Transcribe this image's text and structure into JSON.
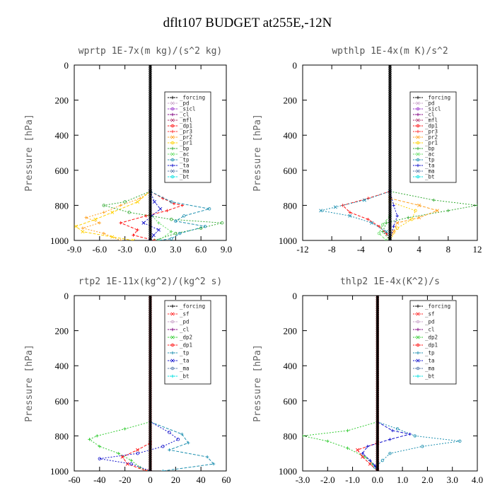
{
  "page_title": "dflt107  BUDGET at255E,-12N",
  "ylabel": "Pressure [hPa]",
  "colors": {
    "forcing": "#000000",
    "pd": "#c8a2c8",
    "sicl": "#9933cc",
    "cl": "#800080",
    "mfl": "#b0306a",
    "dp1": "#ff1010",
    "dp2": "#33cc33",
    "pr3": "#ff3030",
    "pr2": "#ffa020",
    "pr1": "#ffd000",
    "bp": "#33aa33",
    "ac": "#66dd66",
    "tp": "#1e90b0",
    "ta": "#1010cc",
    "ma": "#5577aa",
    "bt": "#00e0e0",
    "sf": "#ff2020"
  },
  "chart_data": [
    {
      "type": "line",
      "title": "wprtp  1E-7x(m kg)/(s^2 kg)",
      "xlim": [
        -9,
        9
      ],
      "ylim": [
        1000,
        0
      ],
      "xticks": [
        "-9.0",
        "-6.0",
        "-3.0",
        "0.0",
        "3.0",
        "6.0",
        "9.0"
      ],
      "yticks": [
        "0",
        "200",
        "400",
        "600",
        "800",
        "1000"
      ],
      "legend": [
        "_forcing",
        "_pd",
        "_sicl",
        "_cl",
        "_mfl",
        "_dp1",
        "_pr3",
        "_pr2",
        "_pr1",
        "_bp",
        "_ac",
        "_tp",
        "_ta",
        "_ma",
        "_bt"
      ],
      "legend_keys": [
        "forcing",
        "pd",
        "sicl",
        "cl",
        "mfl",
        "dp1",
        "pr3",
        "pr2",
        "pr1",
        "bp",
        "ac",
        "tp",
        "ta",
        "ma",
        "bt"
      ],
      "series": [
        {
          "name": "_pr2",
          "color_key": "pr2",
          "p": [
            720,
            760,
            800,
            840,
            870,
            900,
            930,
            960,
            1000
          ],
          "v": [
            0,
            -1.2,
            -3.5,
            -5.5,
            -7.6,
            -6.0,
            -8.0,
            -5.5,
            -3.5
          ]
        },
        {
          "name": "_pr1",
          "color_key": "pr1",
          "p": [
            720,
            780,
            840,
            880,
            920,
            950,
            980,
            1000
          ],
          "v": [
            0,
            -1.5,
            -4.5,
            -6.5,
            -8.8,
            -8.0,
            -4.5,
            -2.0
          ]
        },
        {
          "name": "_bp",
          "color_key": "bp",
          "p": [
            720,
            780,
            800,
            840,
            880,
            900,
            930,
            960,
            1000
          ],
          "v": [
            0,
            -3.0,
            -5.5,
            -2.5,
            2.5,
            8.5,
            6.0,
            3.0,
            0.5
          ]
        },
        {
          "name": "_dp1",
          "color_key": "dp1",
          "p": [
            720,
            760,
            790,
            800,
            830,
            860,
            900,
            940,
            970,
            1000
          ],
          "v": [
            0,
            1.5,
            2.8,
            3.8,
            2.0,
            -0.5,
            -3.5,
            -1.5,
            -2.0,
            0.5
          ]
        },
        {
          "name": "_ta",
          "color_key": "ta",
          "p": [
            720,
            780,
            820,
            860,
            900,
            940,
            970,
            1000
          ],
          "v": [
            0,
            0.5,
            1.2,
            0.2,
            -0.8,
            1.0,
            0.4,
            0
          ]
        },
        {
          "name": "_tp",
          "color_key": "tp",
          "p": [
            720,
            780,
            820,
            860,
            890,
            920,
            960,
            990,
            1000
          ],
          "v": [
            0,
            2.5,
            7.0,
            4.0,
            3.0,
            6.5,
            3.5,
            2.5,
            1.0
          ]
        },
        {
          "name": "_ac",
          "color_key": "ac",
          "p": [
            850,
            900,
            950,
            1000
          ],
          "v": [
            0,
            1.0,
            2.5,
            1.0
          ]
        },
        {
          "name": "_forcing",
          "color_key": "forcing",
          "p": [
            0,
            1000
          ],
          "v": [
            0,
            0
          ]
        }
      ]
    },
    {
      "type": "line",
      "title": "wpthlp  1E-4x(m K)/s^2",
      "xlim": [
        -12,
        12
      ],
      "ylim": [
        1000,
        0
      ],
      "xticks": [
        "-12",
        "-8",
        "-4",
        "0",
        "4",
        "8",
        "12"
      ],
      "yticks": [
        "0",
        "200",
        "400",
        "600",
        "800",
        "1000"
      ],
      "legend": [
        "_forcing",
        "_pd",
        "_sicl",
        "_cl",
        "_mfl",
        "_dp1",
        "_pr3",
        "_pr2",
        "_pr1",
        "_bp",
        "_ac",
        "_tp",
        "_ta",
        "_ma",
        "_bt"
      ],
      "legend_keys": [
        "forcing",
        "pd",
        "sicl",
        "cl",
        "mfl",
        "dp1",
        "pr3",
        "pr2",
        "pr1",
        "bp",
        "ac",
        "tp",
        "ta",
        "ma",
        "bt"
      ],
      "series": [
        {
          "name": "_bp",
          "color_key": "bp",
          "p": [
            720,
            770,
            800,
            830,
            870,
            900,
            950,
            1000
          ],
          "v": [
            0,
            6.0,
            12.0,
            8.0,
            2.5,
            -0.5,
            -1.0,
            0
          ]
        },
        {
          "name": "_pr2",
          "color_key": "pr2",
          "p": [
            760,
            800,
            830,
            870,
            900,
            950,
            1000
          ],
          "v": [
            0,
            4.0,
            6.5,
            4.0,
            1.0,
            0.5,
            0
          ]
        },
        {
          "name": "_pr1",
          "color_key": "pr1",
          "p": [
            780,
            830,
            880,
            930,
            1000
          ],
          "v": [
            0,
            3.5,
            3.0,
            1.0,
            0
          ]
        },
        {
          "name": "_dp1",
          "color_key": "dp1",
          "p": [
            720,
            760,
            800,
            840,
            880,
            920,
            960,
            1000
          ],
          "v": [
            0,
            -3.0,
            -6.5,
            -5.5,
            -3.0,
            -1.5,
            -0.5,
            0
          ]
        },
        {
          "name": "_tp",
          "color_key": "tp",
          "p": [
            720,
            770,
            810,
            830,
            860,
            900,
            950,
            1000
          ],
          "v": [
            0,
            -3.5,
            -7.5,
            -9.5,
            -5.5,
            -2.5,
            -0.5,
            0
          ]
        },
        {
          "name": "_ac",
          "color_key": "ac",
          "p": [
            860,
            910,
            960,
            1000
          ],
          "v": [
            0,
            -1.0,
            -1.5,
            -0.5
          ]
        },
        {
          "name": "_ta",
          "color_key": "ta",
          "p": [
            720,
            800,
            860,
            920,
            1000
          ],
          "v": [
            0,
            0.5,
            1.0,
            0.5,
            0
          ]
        },
        {
          "name": "_forcing",
          "color_key": "forcing",
          "p": [
            0,
            1000
          ],
          "v": [
            0,
            0
          ]
        }
      ]
    },
    {
      "type": "line",
      "title": "rtp2  1E-11x(kg^2)/(kg^2 s)",
      "xlim": [
        -60,
        60
      ],
      "ylim": [
        1000,
        0
      ],
      "xticks": [
        "-60",
        "-40",
        "-20",
        "0",
        "20",
        "40",
        "60"
      ],
      "yticks": [
        "0",
        "200",
        "400",
        "600",
        "800",
        "1000"
      ],
      "legend": [
        "_forcing",
        "_sf",
        "_pd",
        "_cl",
        "_dp2",
        "_dp1",
        "_tp",
        "_ta",
        "_ma",
        "_bt"
      ],
      "legend_keys": [
        "forcing",
        "sf",
        "pd",
        "cl",
        "dp2",
        "dp1",
        "tp",
        "ta",
        "ma",
        "bt"
      ],
      "series": [
        {
          "name": "_dp2",
          "color_key": "dp2",
          "p": [
            720,
            760,
            800,
            820,
            860,
            900,
            940,
            980,
            1000
          ],
          "v": [
            0,
            -20,
            -42,
            -48,
            -40,
            -25,
            -15,
            -8,
            -2
          ]
        },
        {
          "name": "_dp1",
          "color_key": "dp1",
          "p": [
            840,
            880,
            920,
            960,
            1000
          ],
          "v": [
            0,
            -10,
            -22,
            -18,
            -3
          ]
        },
        {
          "name": "_ta",
          "color_key": "ta",
          "p": [
            720,
            780,
            820,
            860,
            900,
            930,
            960,
            1000
          ],
          "v": [
            0,
            15,
            22,
            10,
            -10,
            -40,
            -15,
            0
          ]
        },
        {
          "name": "_tp",
          "color_key": "tp",
          "p": [
            720,
            790,
            840,
            880,
            920,
            960,
            1000
          ],
          "v": [
            0,
            25,
            30,
            15,
            45,
            50,
            10
          ]
        },
        {
          "name": "_sf",
          "color_key": "sf",
          "p": [
            0,
            1000
          ],
          "v": [
            0,
            0
          ]
        },
        {
          "name": "_forcing",
          "color_key": "forcing",
          "p": [
            0,
            1000
          ],
          "v": [
            0,
            0
          ]
        }
      ]
    },
    {
      "type": "line",
      "title": "thlp2  1E-4x(K^2)/s",
      "xlim": [
        -3,
        4
      ],
      "ylim": [
        1000,
        0
      ],
      "xticks": [
        "-3.0",
        "-2.0",
        "-1.0",
        "0.0",
        "1.0",
        "2.0",
        "3.0",
        "4.0"
      ],
      "yticks": [
        "0",
        "200",
        "400",
        "600",
        "800",
        "1000"
      ],
      "legend": [
        "_forcing",
        "_sf",
        "_pd",
        "_cl",
        "_dp2",
        "_dp1",
        "_tp",
        "_ta",
        "_ma",
        "_bt"
      ],
      "legend_keys": [
        "forcing",
        "sf",
        "pd",
        "cl",
        "dp2",
        "dp1",
        "tp",
        "ta",
        "ma",
        "bt"
      ],
      "series": [
        {
          "name": "_dp2",
          "color_key": "dp2",
          "p": [
            720,
            770,
            800,
            830,
            870,
            920,
            960,
            1000
          ],
          "v": [
            0,
            -1.2,
            -3.0,
            -2.0,
            -1.2,
            -0.5,
            -0.2,
            0
          ]
        },
        {
          "name": "_dp1",
          "color_key": "dp1",
          "p": [
            840,
            880,
            920,
            960,
            1000
          ],
          "v": [
            0,
            -0.8,
            -0.6,
            -0.3,
            0
          ]
        },
        {
          "name": "_tp",
          "color_key": "tp",
          "p": [
            720,
            760,
            800,
            830,
            860,
            900,
            940,
            980,
            1000
          ],
          "v": [
            0,
            0.8,
            1.5,
            3.3,
            1.8,
            0.5,
            0.2,
            -0.1,
            0
          ]
        },
        {
          "name": "_ta",
          "color_key": "ta",
          "p": [
            720,
            770,
            790,
            820,
            860,
            900,
            940,
            970,
            1000
          ],
          "v": [
            0,
            0.6,
            1.3,
            0.5,
            -0.4,
            -0.6,
            -0.3,
            -0.1,
            0
          ]
        },
        {
          "name": "_sf",
          "color_key": "sf",
          "p": [
            0,
            1000
          ],
          "v": [
            0,
            0
          ]
        },
        {
          "name": "_forcing",
          "color_key": "forcing",
          "p": [
            0,
            1000
          ],
          "v": [
            0,
            0
          ]
        }
      ]
    }
  ]
}
